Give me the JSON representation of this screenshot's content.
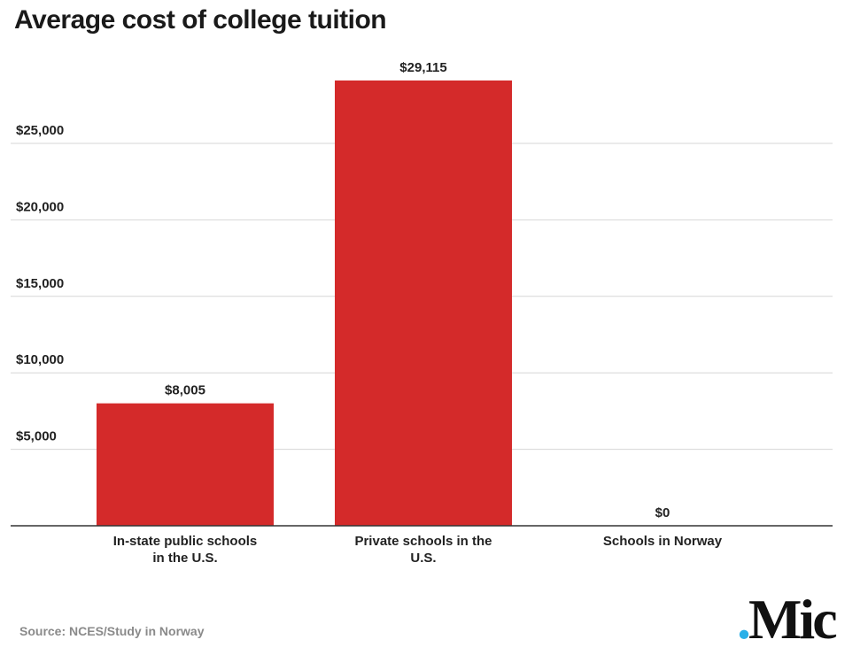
{
  "chart_data": {
    "type": "bar",
    "title": "Average cost of college tuition",
    "categories": [
      [
        "In-state public schools",
        "in the U.S."
      ],
      [
        "Private schools in the",
        "U.S."
      ],
      [
        "Schools in Norway"
      ]
    ],
    "values": [
      8005,
      29115,
      0
    ],
    "data_labels": [
      "$8,005",
      "$29,115",
      "$0"
    ],
    "yticks": [
      5000,
      10000,
      15000,
      20000,
      25000
    ],
    "ytick_labels": [
      "$5,000",
      "$10,000",
      "$15,000",
      "$20,000",
      "$25,000"
    ],
    "ylim": [
      0,
      30000
    ],
    "grid": true,
    "bar_color": "#d42a2a",
    "xlabel": "",
    "ylabel": ""
  },
  "source": "Source: NCES/Study in Norway",
  "logo": {
    "dot": ".",
    "text": "Mic",
    "dot_color": "#2ab0e8"
  }
}
